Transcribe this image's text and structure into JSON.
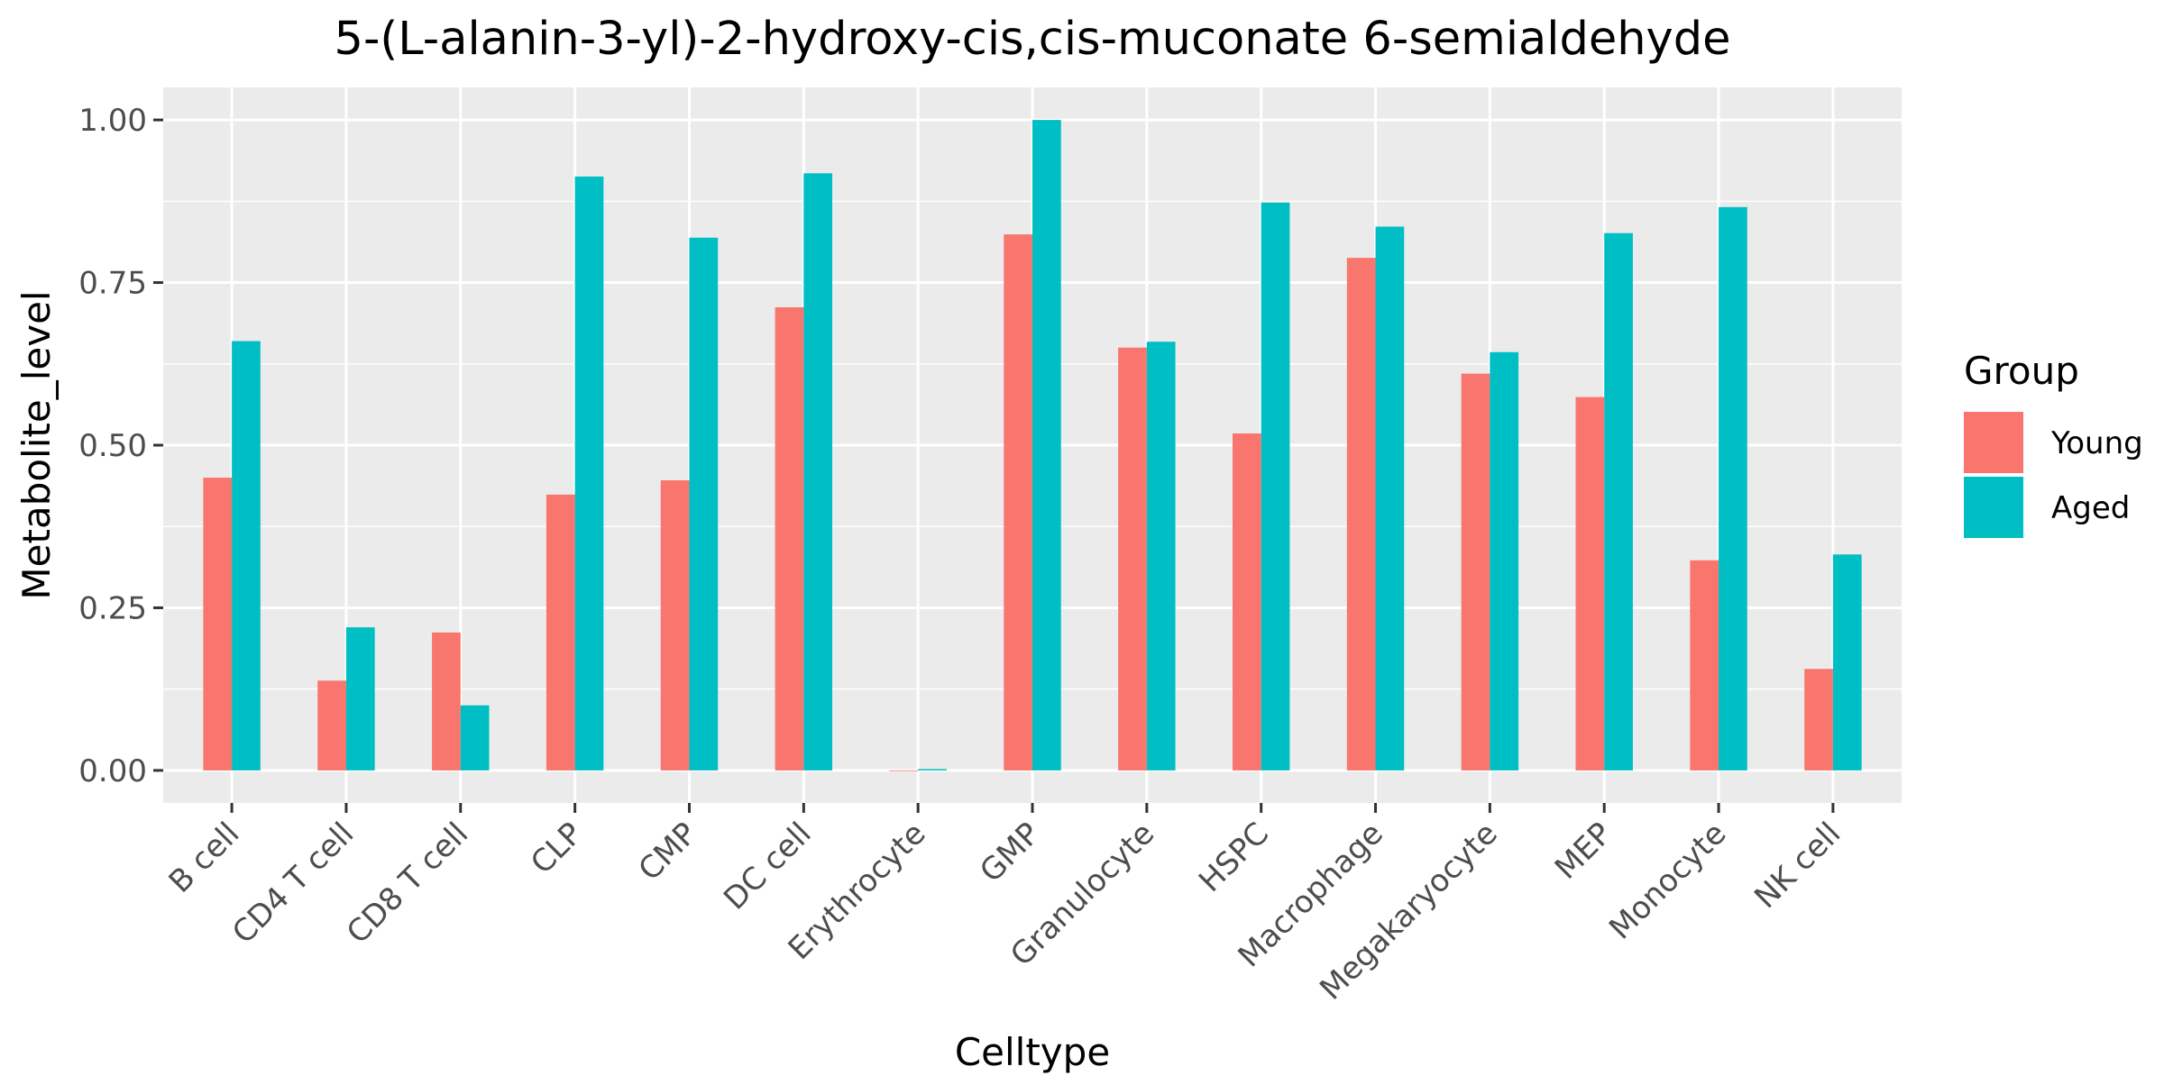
{
  "chart_data": {
    "type": "bar",
    "title": "5-(L-alanin-3-yl)-2-hydroxy-cis,cis-muconate 6-semialdehyde",
    "xlabel": "Celltype",
    "ylabel": "Metabolite_level",
    "ylim": [
      -0.05,
      1.05
    ],
    "yticks": [
      0.0,
      0.25,
      0.5,
      0.75,
      1.0
    ],
    "ytick_labels": [
      "0.00",
      "0.25",
      "0.50",
      "0.75",
      "1.00"
    ],
    "grid": true,
    "legend": {
      "title": "Group",
      "position": "right"
    },
    "categories": [
      "B cell",
      "CD4 T cell",
      "CD8 T cell",
      "CLP",
      "CMP",
      "DC cell",
      "Erythrocyte",
      "GMP",
      "Granulocyte",
      "HSPC",
      "Macrophage",
      "Megakaryocyte",
      "MEP",
      "Monocyte",
      "NK cell"
    ],
    "series": [
      {
        "name": "Young",
        "color": "#F8766D",
        "values": [
          0.45,
          0.138,
          0.212,
          0.424,
          0.446,
          0.712,
          0.0,
          0.824,
          0.65,
          0.518,
          0.788,
          0.61,
          0.574,
          0.323,
          0.156
        ]
      },
      {
        "name": "Aged",
        "color": "#00BFC4",
        "values": [
          0.66,
          0.22,
          0.1,
          0.913,
          0.819,
          0.918,
          0.002,
          1.0,
          0.659,
          0.873,
          0.836,
          0.643,
          0.826,
          0.866,
          0.332
        ]
      }
    ]
  }
}
